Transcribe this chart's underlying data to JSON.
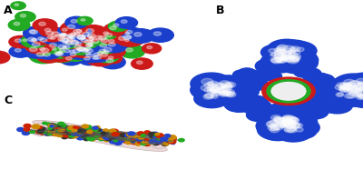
{
  "figure_width": 4.0,
  "figure_height": 2.09,
  "dpi": 100,
  "background_color": "#ffffff",
  "label_A": "A",
  "label_B": "B",
  "label_C": "C",
  "label_fontsize": 9,
  "colors_A": [
    "#1a3fcc",
    "#cc1a1a",
    "#22aa22"
  ],
  "blue_outer": "#1a3fcc",
  "red_ring": "#cc1a1a",
  "green_ring": "#22aa22",
  "cyl_color": "#ead8d8",
  "cyl_edge": "#c8b0b0",
  "atom_colors_C": [
    "#cc8800",
    "#cc2200",
    "#2244cc",
    "#22aa22",
    "#333333"
  ],
  "seed_A": 42,
  "seed_B": 10,
  "seed_C": 7
}
